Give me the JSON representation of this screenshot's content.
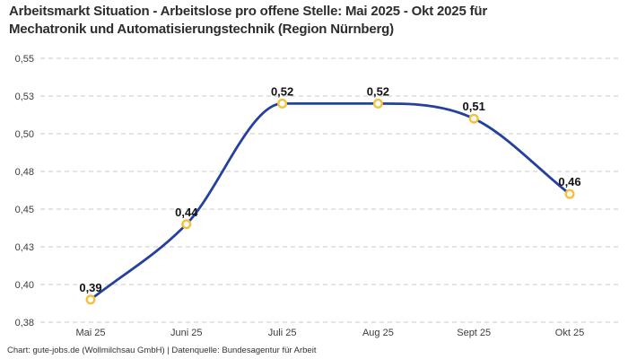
{
  "header": {
    "title": "Arbeitsmarkt Situation - Arbeitslose pro offene Stelle: Mai 2025 - Okt 2025 für Mechatronik und Automatisierungstechnik (Region Nürnberg)",
    "title_lines": [
      "Arbeitsmarkt Situation - Arbeitslose pro offene Stelle: Mai 2025 - Okt 2025 für",
      "Mechatronik und Automatisierungstechnik (Region Nürnberg)"
    ]
  },
  "footer": {
    "text": "Chart: gute-jobs.de (Wollmilchsau GmbH) | Datenquelle: Bundesagentur für Arbeit"
  },
  "chart_data": {
    "type": "line",
    "title": "Arbeitsmarkt Situation - Arbeitslose pro offene Stelle: Mai 2025 - Okt 2025 für Mechatronik und Automatisierungstechnik (Region Nürnberg)",
    "categories": [
      "Mai 25",
      "Juni 25",
      "Juli 25",
      "Aug 25",
      "Sept 25",
      "Okt 25"
    ],
    "values": [
      0.39,
      0.44,
      0.52,
      0.52,
      0.51,
      0.46
    ],
    "value_labels": [
      "0,39",
      "0,44",
      "0,52",
      "0,52",
      "0,51",
      "0,46"
    ],
    "xlabel": "",
    "ylabel": "",
    "ylim": [
      0.375,
      0.55
    ],
    "y_ticks": [
      0.375,
      0.4,
      0.425,
      0.45,
      0.475,
      0.5,
      0.525,
      0.55
    ],
    "y_tick_labels": [
      "0,38",
      "0,40",
      "0,43",
      "0,45",
      "0,48",
      "0,50",
      "0,53",
      "0,55"
    ],
    "grid": "horizontal-dashed",
    "legend": "none",
    "curve": "smooth-monotone",
    "colors": {
      "line": "#2441a0",
      "marker_stroke": "#f3c13d",
      "marker_fill": "#ffffff",
      "grid": "#c9c9c9",
      "tick_text": "#3c3c3c",
      "data_label_text": "#111111"
    }
  }
}
